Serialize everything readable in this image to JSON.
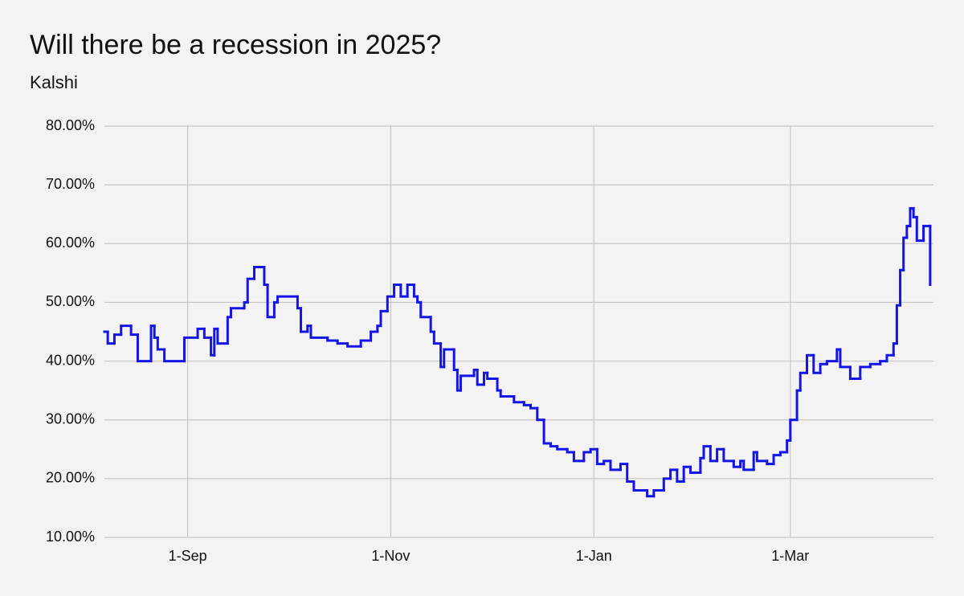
{
  "chart_data": {
    "type": "line",
    "title": "Will there be a recession in 2025?",
    "subtitle": "Kalshi",
    "x": [
      "7-Aug",
      "8-Aug",
      "10-Aug",
      "12-Aug",
      "15-Aug",
      "17-Aug",
      "21-Aug",
      "22-Aug",
      "23-Aug",
      "25-Aug",
      "31-Aug",
      "4-Sep",
      "6-Sep",
      "8-Sep",
      "9-Sep",
      "10-Sep",
      "13-Sep",
      "14-Sep",
      "18-Sep",
      "19-Sep",
      "21-Sep",
      "24-Sep",
      "25-Sep",
      "27-Sep",
      "28-Sep",
      "4-Oct",
      "5-Oct",
      "7-Oct",
      "8-Oct",
      "13-Oct",
      "16-Oct",
      "19-Oct",
      "23-Oct",
      "26-Oct",
      "28-Oct",
      "29-Oct",
      "31-Oct",
      "2-Nov",
      "4-Nov",
      "6-Nov",
      "8-Nov",
      "9-Nov",
      "10-Nov",
      "13-Nov",
      "14-Nov",
      "16-Nov",
      "17-Nov",
      "20-Nov",
      "21-Nov",
      "22-Nov",
      "26-Nov",
      "27-Nov",
      "29-Nov",
      "30-Nov",
      "3-Dec",
      "4-Dec",
      "8-Dec",
      "11-Dec",
      "13-Dec",
      "15-Dec",
      "17-Dec",
      "19-Dec",
      "21-Dec",
      "24-Dec",
      "26-Dec",
      "29-Dec",
      "31-Dec",
      "2-Jan",
      "4-Jan",
      "6-Jan",
      "9-Jan",
      "11-Jan",
      "13-Jan",
      "17-Jan",
      "19-Jan",
      "22-Jan",
      "24-Jan",
      "26-Jan",
      "28-Jan",
      "30-Jan",
      "2-Feb",
      "3-Feb",
      "5-Feb",
      "7-Feb",
      "9-Feb",
      "12-Feb",
      "14-Feb",
      "15-Feb",
      "18-Feb",
      "19-Feb",
      "22-Feb",
      "24-Feb",
      "26-Feb",
      "28-Feb",
      "1-Mar",
      "3-Mar",
      "4-Mar",
      "6-Mar",
      "8-Mar",
      "10-Mar",
      "12-Mar",
      "15-Mar",
      "16-Mar",
      "19-Mar",
      "22-Mar",
      "25-Mar",
      "28-Mar",
      "30-Mar",
      "1-Apr",
      "2-Apr",
      "3-Apr",
      "4-Apr",
      "5-Apr",
      "6-Apr",
      "7-Apr",
      "8-Apr",
      "10-Apr",
      "12-Apr"
    ],
    "series": [
      {
        "color": "#1414e6",
        "values": [
          45,
          43,
          44.5,
          46,
          44.5,
          40,
          46,
          44,
          42,
          40,
          44,
          45.5,
          44,
          41,
          45.5,
          43,
          47.5,
          49,
          50,
          54,
          56,
          53,
          47.5,
          50,
          51,
          49,
          45,
          46,
          44,
          43.5,
          43,
          42.5,
          43.5,
          45,
          46,
          48.5,
          51,
          53,
          51,
          53,
          51,
          50,
          47.5,
          45,
          43,
          39,
          42,
          38.5,
          35,
          37.5,
          38.5,
          36,
          38,
          37,
          35,
          34,
          33,
          32.5,
          32,
          30,
          26,
          25.5,
          25,
          24.5,
          23,
          24.5,
          25,
          22.5,
          23,
          21.5,
          22.5,
          19.5,
          18,
          17,
          18,
          20,
          21.5,
          19.5,
          22,
          21,
          23.5,
          25.5,
          23,
          25,
          23,
          22,
          23,
          21.5,
          24.5,
          23,
          22.5,
          24,
          24.5,
          26.5,
          30,
          35,
          38,
          41,
          38,
          39.5,
          40,
          42,
          39,
          37,
          39,
          39.5,
          40,
          41,
          43,
          49.5,
          55.5,
          61,
          63,
          66,
          64.5,
          60.5,
          63,
          53
        ]
      }
    ],
    "xlim": [
      "7-Aug",
      "13-Apr"
    ],
    "xticks": [
      "1-Sep",
      "1-Nov",
      "1-Jan",
      "1-Mar"
    ],
    "ylim": [
      10,
      80
    ],
    "yticks": [
      {
        "value": 10,
        "label": "10.00%"
      },
      {
        "value": 20,
        "label": "20.00%"
      },
      {
        "value": 30,
        "label": "30.00%"
      },
      {
        "value": 40,
        "label": "40.00%"
      },
      {
        "value": 50,
        "label": "50.00%"
      },
      {
        "value": 60,
        "label": "60.00%"
      },
      {
        "value": 70,
        "label": "70.00%"
      },
      {
        "value": 80,
        "label": "80.00%"
      }
    ],
    "grid": true
  }
}
